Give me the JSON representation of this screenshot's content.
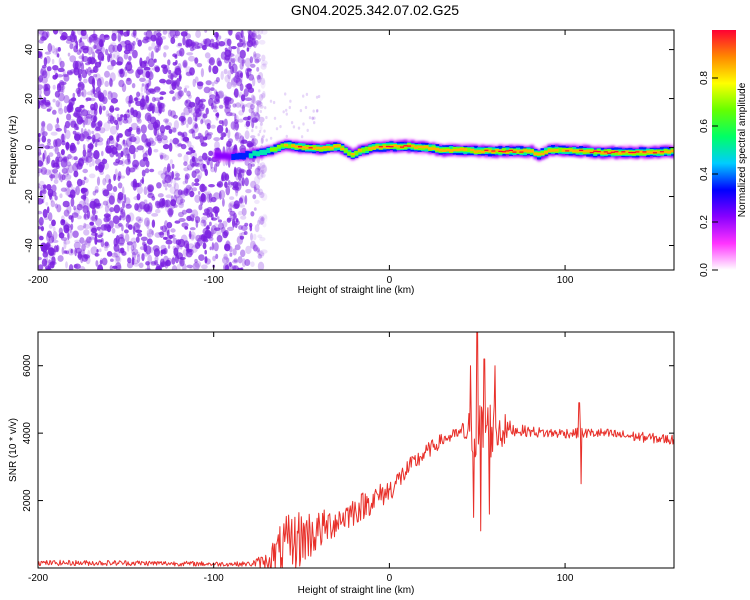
{
  "title": "GN04.2025.342.07.02.G25",
  "colors": {
    "snr_line": "#e8302a",
    "speckle": "#7a1fe0",
    "frame": "#000000",
    "background": "#ffffff"
  },
  "chart_data": [
    {
      "type": "heatmap",
      "name": "spectrogram",
      "xlabel": "Height of straight line (km)",
      "ylabel": "Frequency (Hz)",
      "xlim": [
        -200,
        162
      ],
      "ylim": [
        -50,
        48
      ],
      "xticks": [
        -200,
        -100,
        0,
        100
      ],
      "yticks": [
        -40,
        -20,
        0,
        20,
        40
      ],
      "colorbar": {
        "label": "Normalized spectral amplitude",
        "range": [
          0,
          1
        ],
        "ticks": [
          "0.0",
          "0.2",
          "0.4",
          "0.6",
          "0.8"
        ],
        "tick_values": [
          0.0,
          0.2,
          0.4,
          0.6,
          0.8
        ],
        "colormap": [
          "#ffffff",
          "#ff33ff",
          "#8800ff",
          "#0000ff",
          "#00ccff",
          "#00ff66",
          "#66ff00",
          "#ffff00",
          "#ff8800",
          "#ff0033"
        ]
      },
      "noise_region_x": [
        -200,
        -80
      ],
      "ridge": {
        "x": [
          -100,
          -90,
          -80,
          -70,
          -60,
          -50,
          -40,
          -30,
          -22,
          -18,
          -10,
          0,
          10,
          20,
          30,
          40,
          50,
          60,
          70,
          80,
          84,
          90,
          100,
          110,
          120,
          130,
          140,
          150,
          162
        ],
        "freq": [
          -3.5,
          -3.5,
          -3,
          -1.5,
          1,
          0,
          -0.5,
          0.5,
          -3,
          -1.5,
          0,
          0.5,
          0.5,
          0,
          -1,
          -1,
          -1.5,
          -1.5,
          -1.5,
          -1.5,
          -3,
          -1,
          -1,
          -1.5,
          -2,
          -2,
          -2,
          -2,
          -1.5
        ],
        "amp": [
          0.25,
          0.35,
          0.5,
          0.65,
          0.85,
          0.95,
          0.9,
          0.85,
          0.8,
          0.85,
          0.9,
          1.0,
          1.0,
          0.9,
          0.95,
          0.9,
          0.95,
          1.0,
          1.0,
          0.9,
          0.85,
          0.9,
          0.9,
          0.95,
          1.0,
          1.0,
          1.0,
          1.0,
          0.95
        ]
      }
    },
    {
      "type": "line",
      "name": "snr",
      "xlabel": "Height of straight line (km)",
      "ylabel": "SNR (10 * v/v)",
      "xlim": [
        -200,
        162
      ],
      "ylim": [
        0,
        7000
      ],
      "xticks": [
        -200,
        -100,
        0,
        100
      ],
      "yticks": [
        2000,
        4000,
        6000
      ],
      "series": [
        {
          "name": "SNR",
          "x": [
            -200,
            -150,
            -100,
            -80,
            -70,
            -60,
            -50,
            -40,
            -30,
            -20,
            -10,
            0,
            10,
            20,
            30,
            40,
            50,
            60,
            70,
            80,
            90,
            100,
            110,
            120,
            130,
            140,
            150,
            162
          ],
          "y": [
            150,
            150,
            120,
            120,
            200,
            600,
            900,
            1100,
            1400,
            1700,
            2000,
            2300,
            2900,
            3400,
            3800,
            4000,
            4100,
            4100,
            4100,
            4050,
            4000,
            4000,
            4000,
            4000,
            3950,
            3900,
            3850,
            3800
          ],
          "noise_amp": [
            80,
            80,
            70,
            70,
            250,
            900,
            900,
            600,
            450,
            450,
            400,
            350,
            300,
            250,
            200,
            180,
            1000,
            900,
            180,
            160,
            150,
            150,
            150,
            150,
            150,
            150,
            150,
            150
          ]
        }
      ],
      "spikes": {
        "x": [
          46,
          48,
          50,
          52,
          54,
          57,
          60,
          108,
          109
        ],
        "y": [
          6000,
          1500,
          7000,
          1100,
          6200,
          1600,
          6000,
          4900,
          2500
        ]
      }
    }
  ]
}
